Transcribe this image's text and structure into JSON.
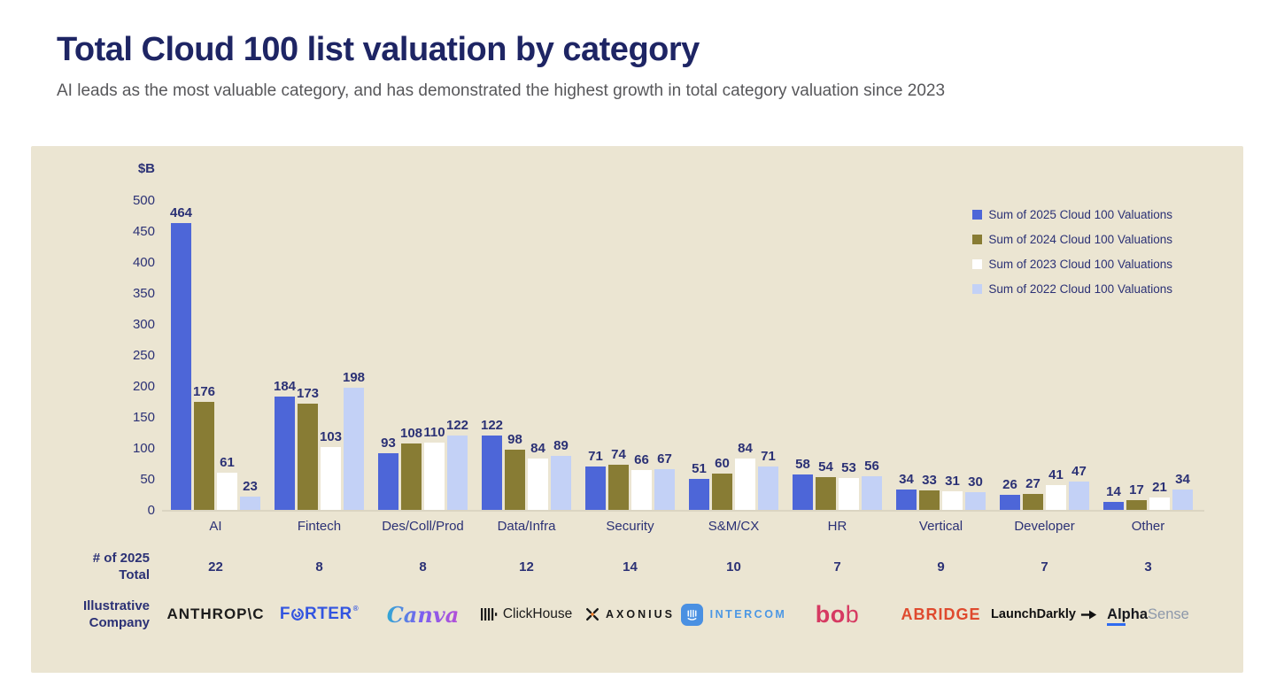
{
  "page": {
    "title": "Total Cloud 100 list valuation by category",
    "subtitle": "AI leads as the most valuable category, and has demonstrated the highest growth in total category valuation since 2023"
  },
  "chart_data": {
    "type": "bar",
    "title": "Total Cloud 100 list valuation by category",
    "unit_label": "$B",
    "ylim": [
      0,
      500
    ],
    "ytick_step": 50,
    "grid": false,
    "legend_position": "top-right",
    "categories": [
      "AI",
      "Fintech",
      "Des/Coll/Prod",
      "Data/Infra",
      "Security",
      "S&M/CX",
      "HR",
      "Vertical",
      "Developer",
      "Other"
    ],
    "series": [
      {
        "name": "Sum of 2025 Cloud 100 Valuations",
        "color": "#4d66d8",
        "values": [
          464,
          184,
          93,
          122,
          71,
          51,
          58,
          34,
          26,
          14
        ]
      },
      {
        "name": "Sum of 2024 Cloud 100 Valuations",
        "color": "#887c34",
        "values": [
          176,
          173,
          108,
          98,
          74,
          60,
          54,
          33,
          27,
          17
        ]
      },
      {
        "name": "Sum of 2023 Cloud 100 Valuations",
        "color": "#ffffff",
        "values": [
          61,
          103,
          110,
          84,
          66,
          84,
          53,
          31,
          41,
          21
        ]
      },
      {
        "name": "Sum of 2022 Cloud 100 Valuations",
        "color": "#c3d1f6",
        "values": [
          23,
          198,
          122,
          89,
          67,
          71,
          56,
          30,
          47,
          34
        ]
      }
    ],
    "count_row": {
      "label_line1": "# of 2025",
      "label_line2": "Total",
      "values": [
        22,
        8,
        8,
        12,
        14,
        10,
        7,
        9,
        7,
        3
      ]
    },
    "company_row": {
      "label_line1": "Illustrative",
      "label_line2": "Company",
      "companies": [
        {
          "key": "anthropic",
          "text": "ANTHROP\\C"
        },
        {
          "key": "forter",
          "pre": "F",
          "post": "RTER",
          "mark": "®"
        },
        {
          "key": "canva",
          "text": "Canva"
        },
        {
          "key": "clickhouse",
          "text": "ClickHouse"
        },
        {
          "key": "axonius",
          "text": "AXONIUS"
        },
        {
          "key": "intercom",
          "text": "INTERCOM"
        },
        {
          "key": "bob",
          "b1": "b",
          "o": "o",
          "b2": "b"
        },
        {
          "key": "abridge",
          "text": "ABRIDGE"
        },
        {
          "key": "launchdarkly",
          "text": "LaunchDarkly"
        },
        {
          "key": "alphasense",
          "part1": "Alpha",
          "part2": "Sense"
        }
      ]
    }
  },
  "colors": {
    "panel_bg": "#ebe5d2",
    "text_navy": "#2b3175",
    "title_navy": "#1e2564",
    "baseline": "#dbd5c2"
  }
}
